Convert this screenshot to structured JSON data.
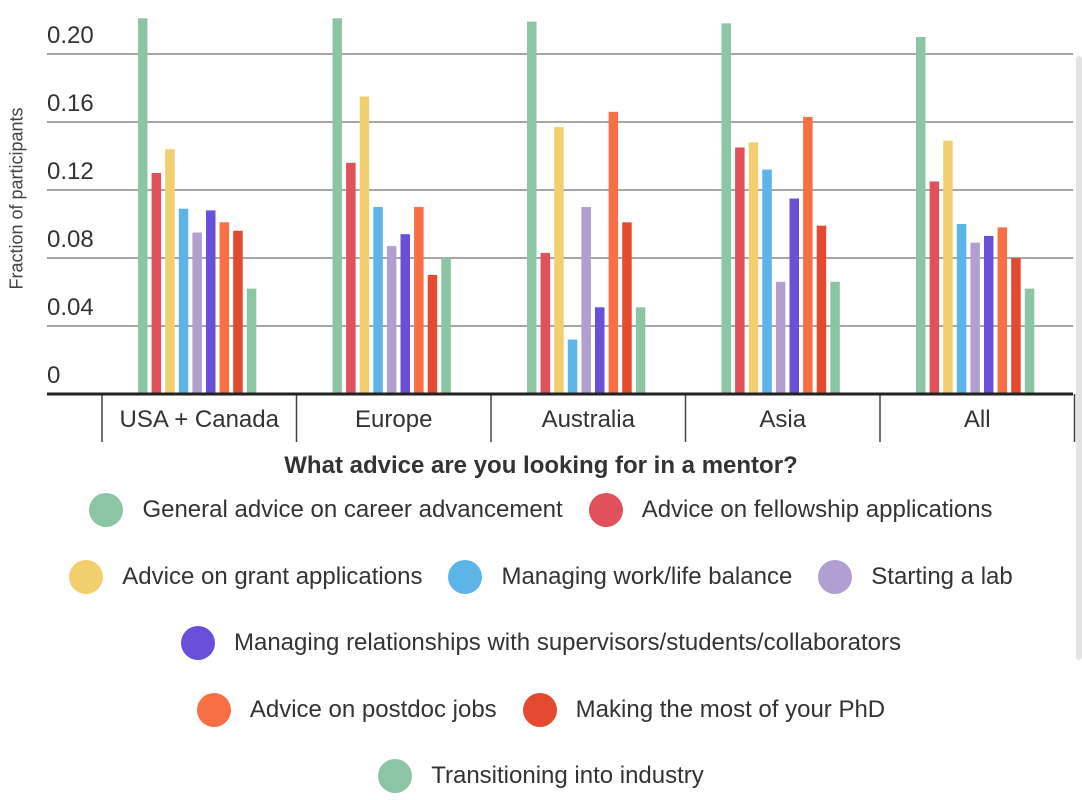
{
  "chart_data": {
    "type": "bar",
    "title": "",
    "xlabel": "What advice are you looking for in a mentor?",
    "ylabel": "Fraction of participants",
    "ylim": [
      0,
      0.22
    ],
    "yticks": [
      "0",
      "0.04",
      "0.08",
      "0.12",
      "0.16",
      "0.20"
    ],
    "grid": true,
    "legend_position": "bottom",
    "categories": [
      "USA + Canada",
      "Europe",
      "Australia",
      "Asia",
      "All"
    ],
    "series": [
      {
        "name": "General advice on career advancement",
        "color": "#8cc5a3",
        "values": [
          0.221,
          0.221,
          0.219,
          0.218,
          0.21
        ]
      },
      {
        "name": "Advice on fellowship applications",
        "color": "#e0515b",
        "values": [
          0.13,
          0.136,
          0.083,
          0.145,
          0.125
        ]
      },
      {
        "name": "Advice on grant applications",
        "color": "#f1cf6f",
        "values": [
          0.144,
          0.175,
          0.157,
          0.148,
          0.149
        ]
      },
      {
        "name": "Managing work/life balance",
        "color": "#5cb4e8",
        "values": [
          0.109,
          0.11,
          0.032,
          0.132,
          0.1
        ]
      },
      {
        "name": "Starting a lab",
        "color": "#b29fd2",
        "values": [
          0.095,
          0.087,
          0.11,
          0.066,
          0.089
        ]
      },
      {
        "name": "Managing relationships with supervisors/students/collaborators",
        "color": "#6a4fd9",
        "values": [
          0.108,
          0.094,
          0.051,
          0.115,
          0.093
        ]
      },
      {
        "name": "Advice on postdoc jobs",
        "color": "#f86f45",
        "values": [
          0.101,
          0.11,
          0.166,
          0.163,
          0.098
        ]
      },
      {
        "name": "Making the most of your PhD",
        "color": "#e44a30",
        "values": [
          0.096,
          0.07,
          0.101,
          0.099,
          0.08
        ]
      },
      {
        "name": "Transitioning into industry",
        "color": "#8cc5a3",
        "values": [
          0.062,
          0.08,
          0.051,
          0.066,
          0.062
        ]
      }
    ]
  }
}
